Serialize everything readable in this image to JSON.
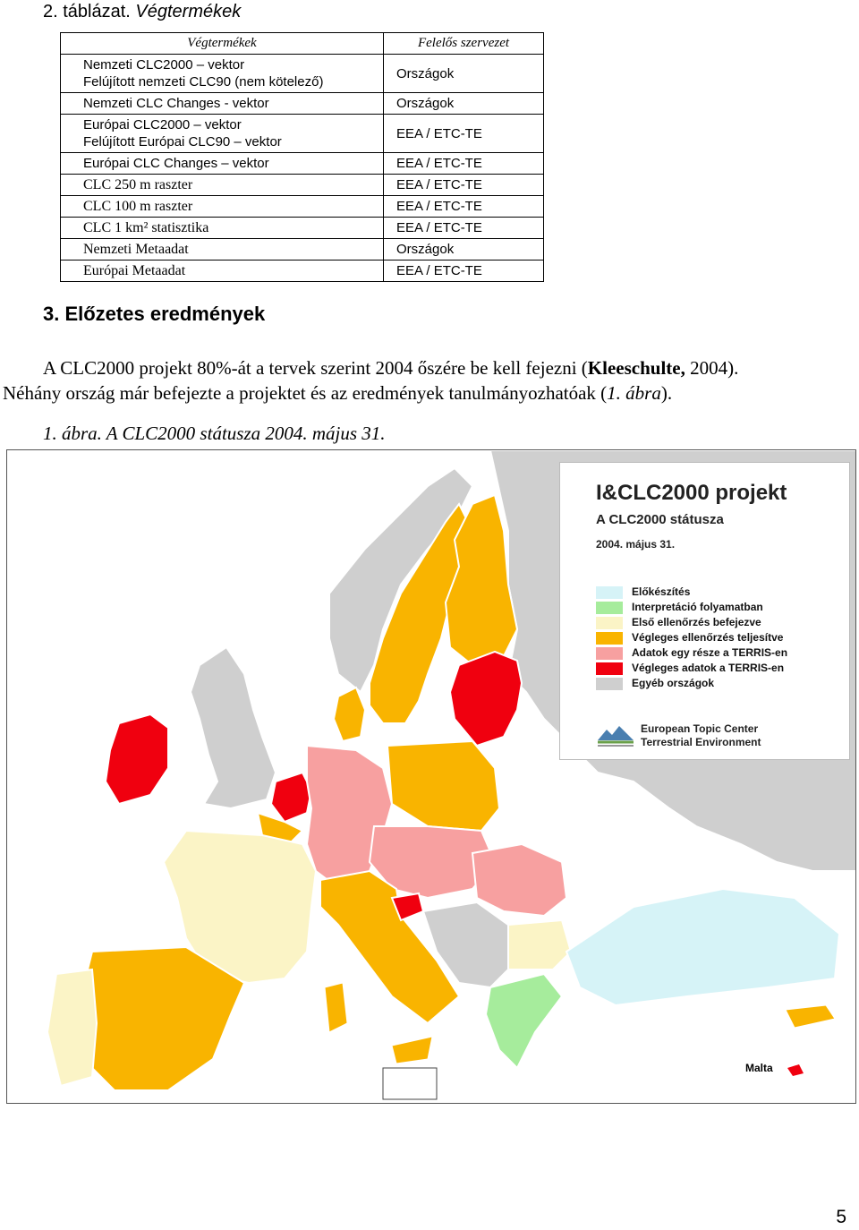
{
  "table_caption": {
    "number": "2. táblázat.",
    "title": "Végtermékek"
  },
  "table": {
    "headers": [
      "Végtermékek",
      "Felelős szervezet"
    ],
    "rows": [
      {
        "product_lines": [
          "Nemzeti CLC2000 – vektor",
          "Felújított nemzeti CLC90 (nem kötelező)"
        ],
        "org": "Országok",
        "serif": false
      },
      {
        "product_lines": [
          "Nemzeti CLC Changes - vektor"
        ],
        "org": "Országok",
        "serif": false
      },
      {
        "product_lines": [
          "Európai CLC2000 – vektor",
          "Felújított Európai CLC90 – vektor"
        ],
        "org": "EEA / ETC-TE",
        "serif": false
      },
      {
        "product_lines": [
          "Európai CLC Changes – vektor"
        ],
        "org": "EEA / ETC-TE",
        "serif": false
      },
      {
        "product_lines": [
          "CLC 250 m raszter"
        ],
        "org": "EEA / ETC-TE",
        "serif": true
      },
      {
        "product_lines": [
          "CLC 100 m raszter"
        ],
        "org": "EEA / ETC-TE",
        "serif": true
      },
      {
        "product_lines": [
          "CLC 1 km² statisztika"
        ],
        "org": "EEA / ETC-TE",
        "serif": true
      },
      {
        "product_lines": [
          "Nemzeti Metaadat"
        ],
        "org": "Országok",
        "serif": true
      },
      {
        "product_lines": [
          "Európai Metaadat"
        ],
        "org": "EEA / ETC-TE",
        "serif": true
      }
    ]
  },
  "section": {
    "heading": "3. Előzetes eredmények",
    "para1_a": "A CLC2000 projekt  80%-át a tervek szerint 2004 őszére be kell fejezni (",
    "para1_bold": "Kleeschulte,",
    "para1_b": " 2004).",
    "para2_a": "Néhány ország már befejezte a projektet és az eredmények tanulmányozhatóak (",
    "para2_italic": "1. ábra",
    "para2_b": ")."
  },
  "figure": {
    "caption": "1. ábra. A CLC2000 státusza 2004. május 31.",
    "legend": {
      "title": "I&CLC2000 projekt",
      "subtitle": "A CLC2000 státusza",
      "date": "2004. május 31.",
      "items": [
        {
          "label": "Előkészítés",
          "color": "#d6f3f7"
        },
        {
          "label": "Interpretáció folyamatban",
          "color": "#a6ec9c"
        },
        {
          "label": "Első ellenőrzés befejezve",
          "color": "#fbf4c6"
        },
        {
          "label": "Végleges ellenőrzés teljesítve",
          "color": "#f9b400"
        },
        {
          "label": "Adatok egy része a TERRIS-en",
          "color": "#f7a0a0"
        },
        {
          "label": "Végleges adatok a TERRIS-en",
          "color": "#f0000f"
        },
        {
          "label": "Egyéb országok",
          "color": "#cfcfcf"
        }
      ],
      "org_line1": "European Topic Center",
      "org_line2": "Terrestrial Environment"
    },
    "malta_label": "Malta",
    "colors": {
      "sea": "#ffffff",
      "other": "#cfcfcf",
      "prep": "#d6f3f7",
      "interp": "#a6ec9c",
      "first_check": "#fbf4c6",
      "final_check": "#f9b400",
      "partial": "#f7a0a0",
      "final": "#f0000f"
    }
  },
  "page_number": "5"
}
